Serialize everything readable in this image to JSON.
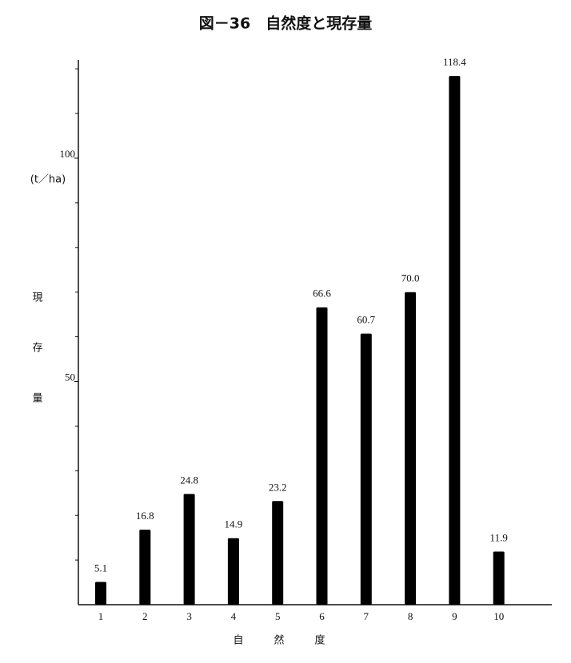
{
  "chart_data": {
    "type": "bar",
    "title": "図－36　自然度と現存量",
    "x_label": "自然度",
    "y_label": "現存量",
    "y_unit": "(t／ha)",
    "categories": [
      "1",
      "2",
      "3",
      "4",
      "5",
      "6",
      "7",
      "8",
      "9",
      "10"
    ],
    "values": [
      5.1,
      16.8,
      24.8,
      14.9,
      23.2,
      66.6,
      60.7,
      70.0,
      118.4,
      11.9
    ],
    "value_labels": [
      "5.1",
      "16.8",
      "24.8",
      "14.9",
      "23.2",
      "66.6",
      "60.7",
      "70.0",
      "118.4",
      "11.9"
    ],
    "color": "#000000",
    "ylim": [
      0,
      122
    ],
    "yticks": [
      50,
      100
    ],
    "minor_yticks": [
      10,
      20,
      30,
      40,
      60,
      70,
      80,
      90,
      110,
      120
    ],
    "grid": false
  }
}
